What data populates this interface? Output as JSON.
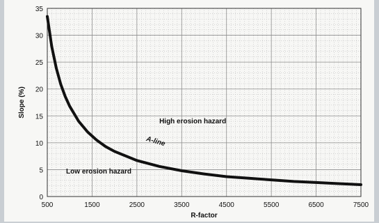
{
  "chart_data": {
    "type": "line",
    "title": "",
    "xlabel": "R-factor",
    "ylabel": "Slope (%)",
    "xlim": [
      500,
      7500
    ],
    "ylim": [
      0,
      35
    ],
    "x_ticks": [
      "500",
      "1500",
      "2500",
      "3500",
      "4500",
      "5500",
      "6500",
      "7500"
    ],
    "y_ticks": [
      "0",
      "5",
      "10",
      "15",
      "20",
      "25",
      "30",
      "35"
    ],
    "grid": true,
    "series": [
      {
        "name": "A-line",
        "x": [
          500,
          600,
          700,
          800,
          900,
          1000,
          1200,
          1400,
          1600,
          1800,
          2000,
          2500,
          3000,
          3500,
          4000,
          4500,
          5000,
          5500,
          6000,
          6500,
          7000,
          7500
        ],
        "y": [
          33.5,
          27.9,
          23.9,
          20.9,
          18.6,
          16.8,
          14.0,
          12.0,
          10.5,
          9.3,
          8.4,
          6.7,
          5.6,
          4.8,
          4.2,
          3.7,
          3.4,
          3.1,
          2.8,
          2.6,
          2.4,
          2.2
        ]
      }
    ],
    "annotations": {
      "curve_label": "A-line",
      "high_region": "High erosion hazard",
      "low_region": "Low erosion hazard"
    },
    "colors": {
      "curve": "#111111",
      "grid_major": "#8c8c8c",
      "grid_minor": "#bdbdbd"
    }
  }
}
